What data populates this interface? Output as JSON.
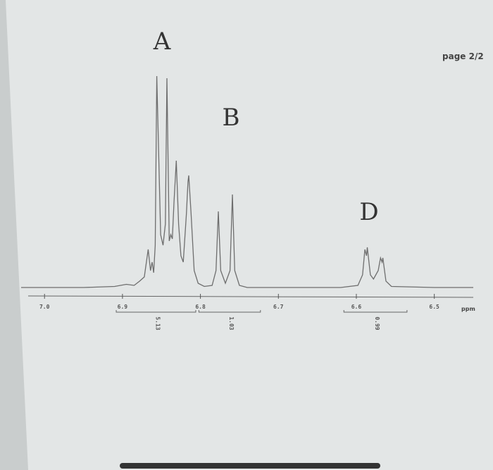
{
  "chart_data": {
    "type": "line",
    "page_label": "page 2/2",
    "xlabel": "ppm",
    "annotations": [
      "A",
      "B",
      "D"
    ],
    "x": [
      7.03,
      6.95,
      6.91,
      6.895,
      6.885,
      6.878,
      6.872,
      6.867,
      6.864,
      6.862,
      6.86,
      6.858,
      6.856,
      6.851,
      6.848,
      6.845,
      6.843,
      6.84,
      6.838,
      6.836,
      6.834,
      6.831,
      6.828,
      6.825,
      6.822,
      6.818,
      6.816,
      6.815,
      6.812,
      6.808,
      6.803,
      6.795,
      6.785,
      6.78,
      6.777,
      6.774,
      6.768,
      6.762,
      6.759,
      6.756,
      6.75,
      6.74,
      6.7,
      6.62,
      6.598,
      6.592,
      6.589,
      6.587,
      6.586,
      6.582,
      6.578,
      6.572,
      6.569,
      6.567,
      6.566,
      6.562,
      6.555,
      6.5,
      6.45
    ],
    "series": [
      {
        "color": "#6e6e6e",
        "values": [
          0,
          0,
          0.5,
          1.5,
          1,
          3,
          5,
          18,
          8,
          12,
          7,
          20,
          100,
          25,
          20,
          30,
          99,
          22,
          25,
          23,
          40,
          60,
          30,
          15,
          12,
          35,
          50,
          53,
          35,
          8,
          2,
          0.5,
          1,
          8,
          36,
          8,
          2,
          8,
          44,
          8,
          1,
          0,
          0,
          0,
          1,
          6,
          18,
          15,
          19,
          6,
          4,
          8,
          14,
          12,
          14,
          3,
          0.5,
          0,
          0
        ]
      }
    ],
    "xlim": [
      7.03,
      6.45
    ],
    "ylim": [
      0,
      100
    ],
    "xticks": [
      {
        "value": 7,
        "label": "7.0"
      },
      6.9,
      6.8,
      6.7,
      6.6,
      6.5
    ],
    "integrals": [
      {
        "from": 6.908,
        "to": 6.806,
        "value": 5.13
      },
      {
        "from": 6.802,
        "to": 6.723,
        "value": 1.03
      },
      {
        "from": 6.616,
        "to": 6.535,
        "value": 0.99
      }
    ]
  }
}
